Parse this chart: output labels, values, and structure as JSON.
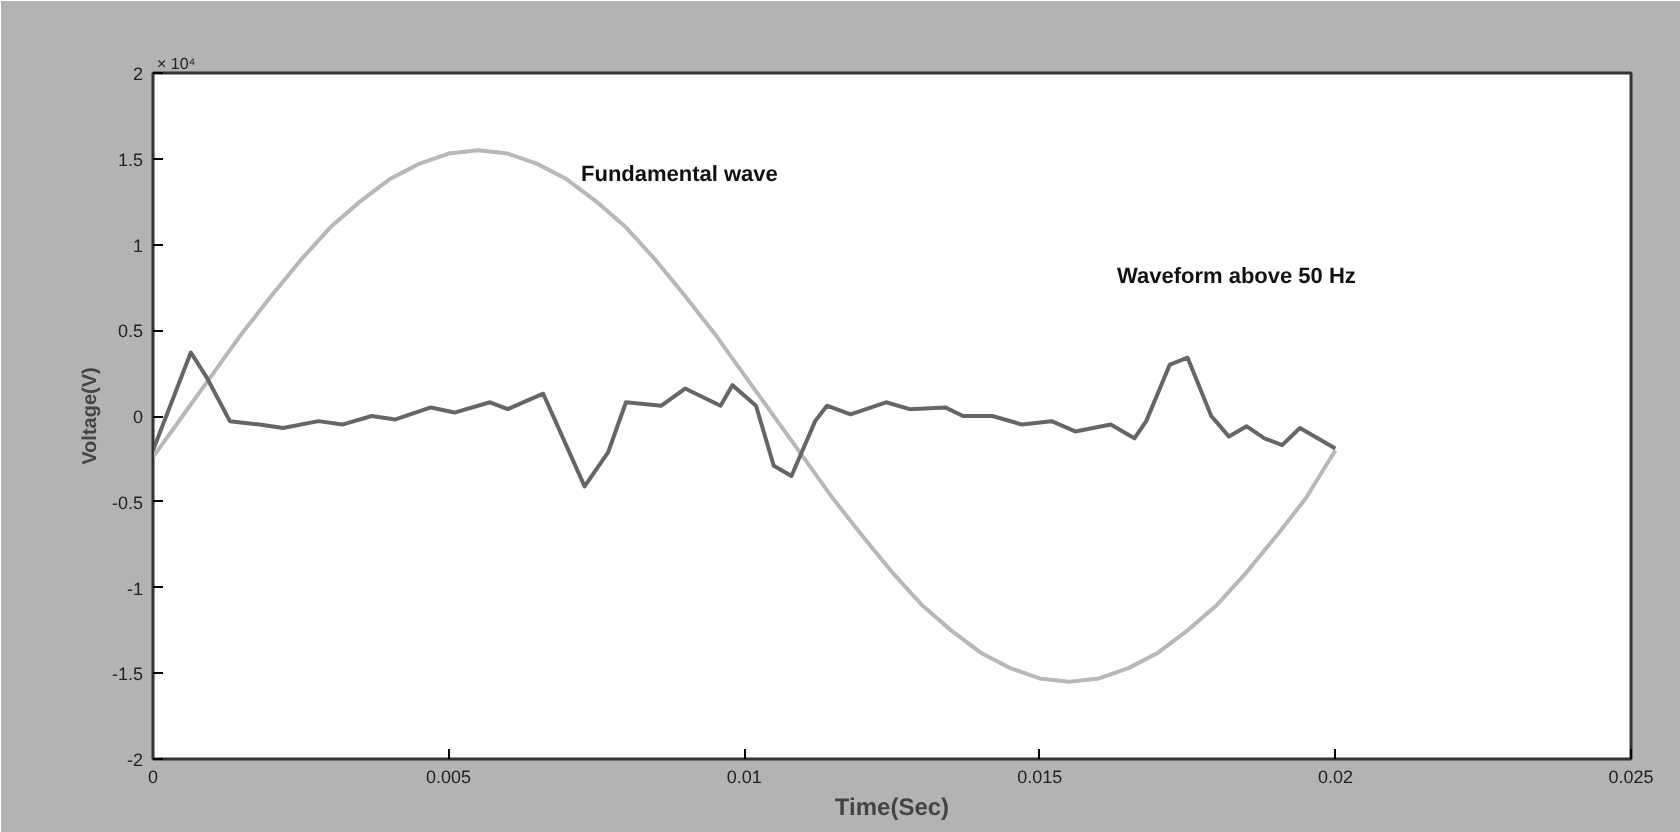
{
  "chart_data": {
    "type": "line",
    "xlabel": "Time(Sec)",
    "ylabel": "Voltage(V)",
    "xlim": [
      0,
      0.025
    ],
    "xticks": [
      0,
      0.005,
      0.01,
      0.015,
      0.02,
      0.025
    ],
    "ylim": [
      -2,
      2
    ],
    "yticks": [
      -2,
      -1.5,
      -1,
      -0.5,
      0,
      0.5,
      1,
      1.5,
      2
    ],
    "grid": false,
    "line_style": "solid",
    "marker": "none",
    "series": [
      {
        "color": "#b8b8b8",
        "x": [
          0,
          0.0005,
          0.001,
          0.0015,
          0.002,
          0.0025,
          0.003,
          0.0035,
          0.004,
          0.0045,
          0.005,
          0.0055,
          0.006,
          0.0065,
          0.007,
          0.0075,
          0.008,
          0.0085,
          0.009,
          0.0095,
          0.01,
          0.0105,
          0.011,
          0.0115,
          0.012,
          0.0125,
          0.013,
          0.0135,
          0.014,
          0.0145,
          0.015,
          0.0155,
          0.016,
          0.0165,
          0.017,
          0.0175,
          0.018,
          0.0185,
          0.019,
          0.0195,
          0.02
        ],
        "values": [
          -0.24,
          0,
          0.24,
          0.48,
          0.7,
          0.91,
          1.1,
          1.25,
          1.38,
          1.47,
          1.53,
          1.55,
          1.53,
          1.47,
          1.38,
          1.25,
          1.1,
          0.91,
          0.7,
          0.48,
          0.24,
          0,
          -0.24,
          -0.48,
          -0.7,
          -0.91,
          -1.1,
          -1.25,
          -1.38,
          -1.47,
          -1.53,
          -1.55,
          -1.53,
          -1.47,
          -1.38,
          -1.25,
          -1.1,
          -0.91,
          -0.7,
          -0.48,
          -0.2
        ]
      },
      {
        "color": "#666666",
        "x": [
          0,
          0.00064,
          0.0009,
          0.0013,
          0.0018,
          0.0022,
          0.0028,
          0.0032,
          0.0037,
          0.0041,
          0.0047,
          0.0051,
          0.0057,
          0.006,
          0.0066,
          0.0073,
          0.0077,
          0.008,
          0.0086,
          0.009,
          0.0096,
          0.0098,
          0.0102,
          0.0105,
          0.0108,
          0.0112,
          0.0114,
          0.0118,
          0.0124,
          0.0128,
          0.0134,
          0.0137,
          0.0142,
          0.0147,
          0.0152,
          0.0156,
          0.0162,
          0.0166,
          0.0168,
          0.0172,
          0.0175,
          0.0179,
          0.0182,
          0.0185,
          0.0188,
          0.0191,
          0.0194,
          0.02
        ],
        "values": [
          -0.2,
          0.37,
          0.23,
          -0.03,
          -0.05,
          -0.07,
          -0.03,
          -0.05,
          0,
          -0.02,
          0.05,
          0.02,
          0.08,
          0.04,
          0.13,
          -0.41,
          -0.21,
          0.08,
          0.06,
          0.16,
          0.06,
          0.18,
          0.06,
          -0.29,
          -0.35,
          -0.03,
          0.06,
          0.01,
          0.08,
          0.04,
          0.05,
          0,
          0,
          -0.05,
          -0.03,
          -0.09,
          -0.05,
          -0.13,
          -0.03,
          0.3,
          0.34,
          0,
          -0.12,
          -0.06,
          -0.13,
          -0.17,
          -0.07,
          -0.19
        ]
      }
    ],
    "annotations": [
      "× 10⁴",
      "Fundamental wave",
      "Waveform above 50 Hz"
    ]
  }
}
